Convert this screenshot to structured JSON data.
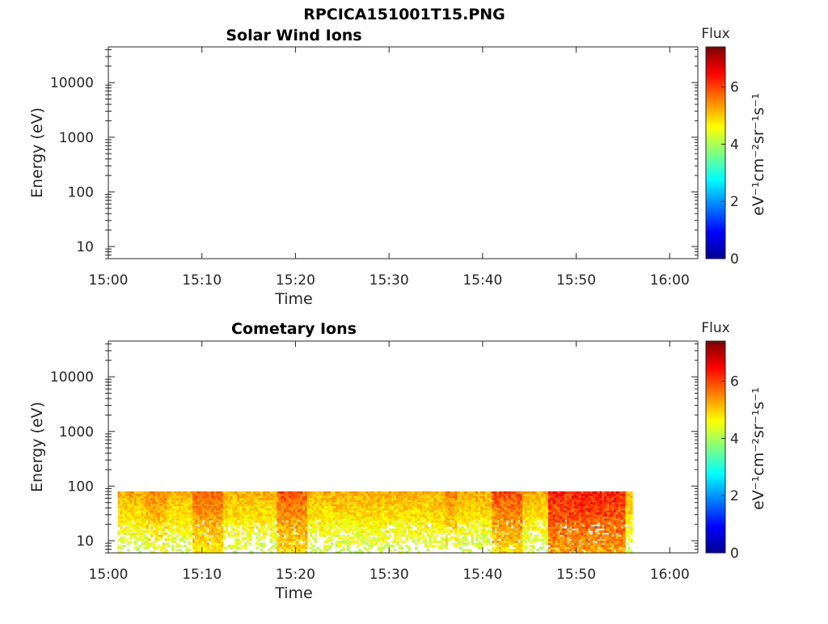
{
  "figure": {
    "title": "RPCICA151001T15.PNG"
  },
  "colormap": [
    "#00008f",
    "#0000ff",
    "#0080ff",
    "#00ffff",
    "#80ff80",
    "#ffff00",
    "#ff8000",
    "#ff0000",
    "#800000"
  ],
  "chart_data": [
    {
      "type": "heatmap",
      "title": "Solar Wind Ions",
      "xlabel": "Time",
      "ylabel": "Energy (eV)",
      "x_ticks": [
        "15:00",
        "15:10",
        "15:20",
        "15:30",
        "15:40",
        "15:50",
        "16:00"
      ],
      "x_range": [
        "15:00",
        "16:03"
      ],
      "y_scale": "log",
      "y_ticks": [
        "10",
        "100",
        "1000",
        "10000"
      ],
      "y_range": [
        6,
        45000
      ],
      "colorbar": {
        "label": "Flux",
        "unit": "eV⁻¹cm⁻²sr⁻¹s⁻¹",
        "ticks": [
          "0",
          "2",
          "4",
          "6"
        ],
        "range": [
          0,
          7.4
        ]
      },
      "data": []
    },
    {
      "type": "heatmap",
      "title": "Cometary Ions",
      "xlabel": "Time",
      "ylabel": "Energy (eV)",
      "x_ticks": [
        "15:00",
        "15:10",
        "15:20",
        "15:30",
        "15:40",
        "15:50",
        "16:00"
      ],
      "x_range": [
        "15:00",
        "16:03"
      ],
      "y_scale": "log",
      "y_ticks": [
        "10",
        "100",
        "1000",
        "10000"
      ],
      "y_range": [
        6,
        45000
      ],
      "colorbar": {
        "label": "Flux",
        "unit": "eV⁻¹cm⁻²sr⁻¹s⁻¹",
        "ticks": [
          "0",
          "2",
          "4",
          "6"
        ],
        "range": [
          0,
          7.4
        ]
      },
      "data": {
        "time_start": "15:01",
        "time_end": "15:56",
        "energy_max": 80,
        "energy_min": 6,
        "typical_flux_high_energy": 5.2,
        "typical_flux_low_energy": 4.2,
        "enhanced_intervals": [
          {
            "start": "15:04",
            "end": "15:06",
            "peak_flux": 5.6
          },
          {
            "start": "15:09",
            "end": "15:12",
            "peak_flux": 5.9
          },
          {
            "start": "15:18",
            "end": "15:21",
            "peak_flux": 6.0
          },
          {
            "start": "15:36",
            "end": "15:37",
            "peak_flux": 5.6
          },
          {
            "start": "15:41",
            "end": "15:44",
            "peak_flux": 6.1
          },
          {
            "start": "15:47",
            "end": "15:55",
            "peak_flux": 6.6
          }
        ]
      }
    }
  ]
}
